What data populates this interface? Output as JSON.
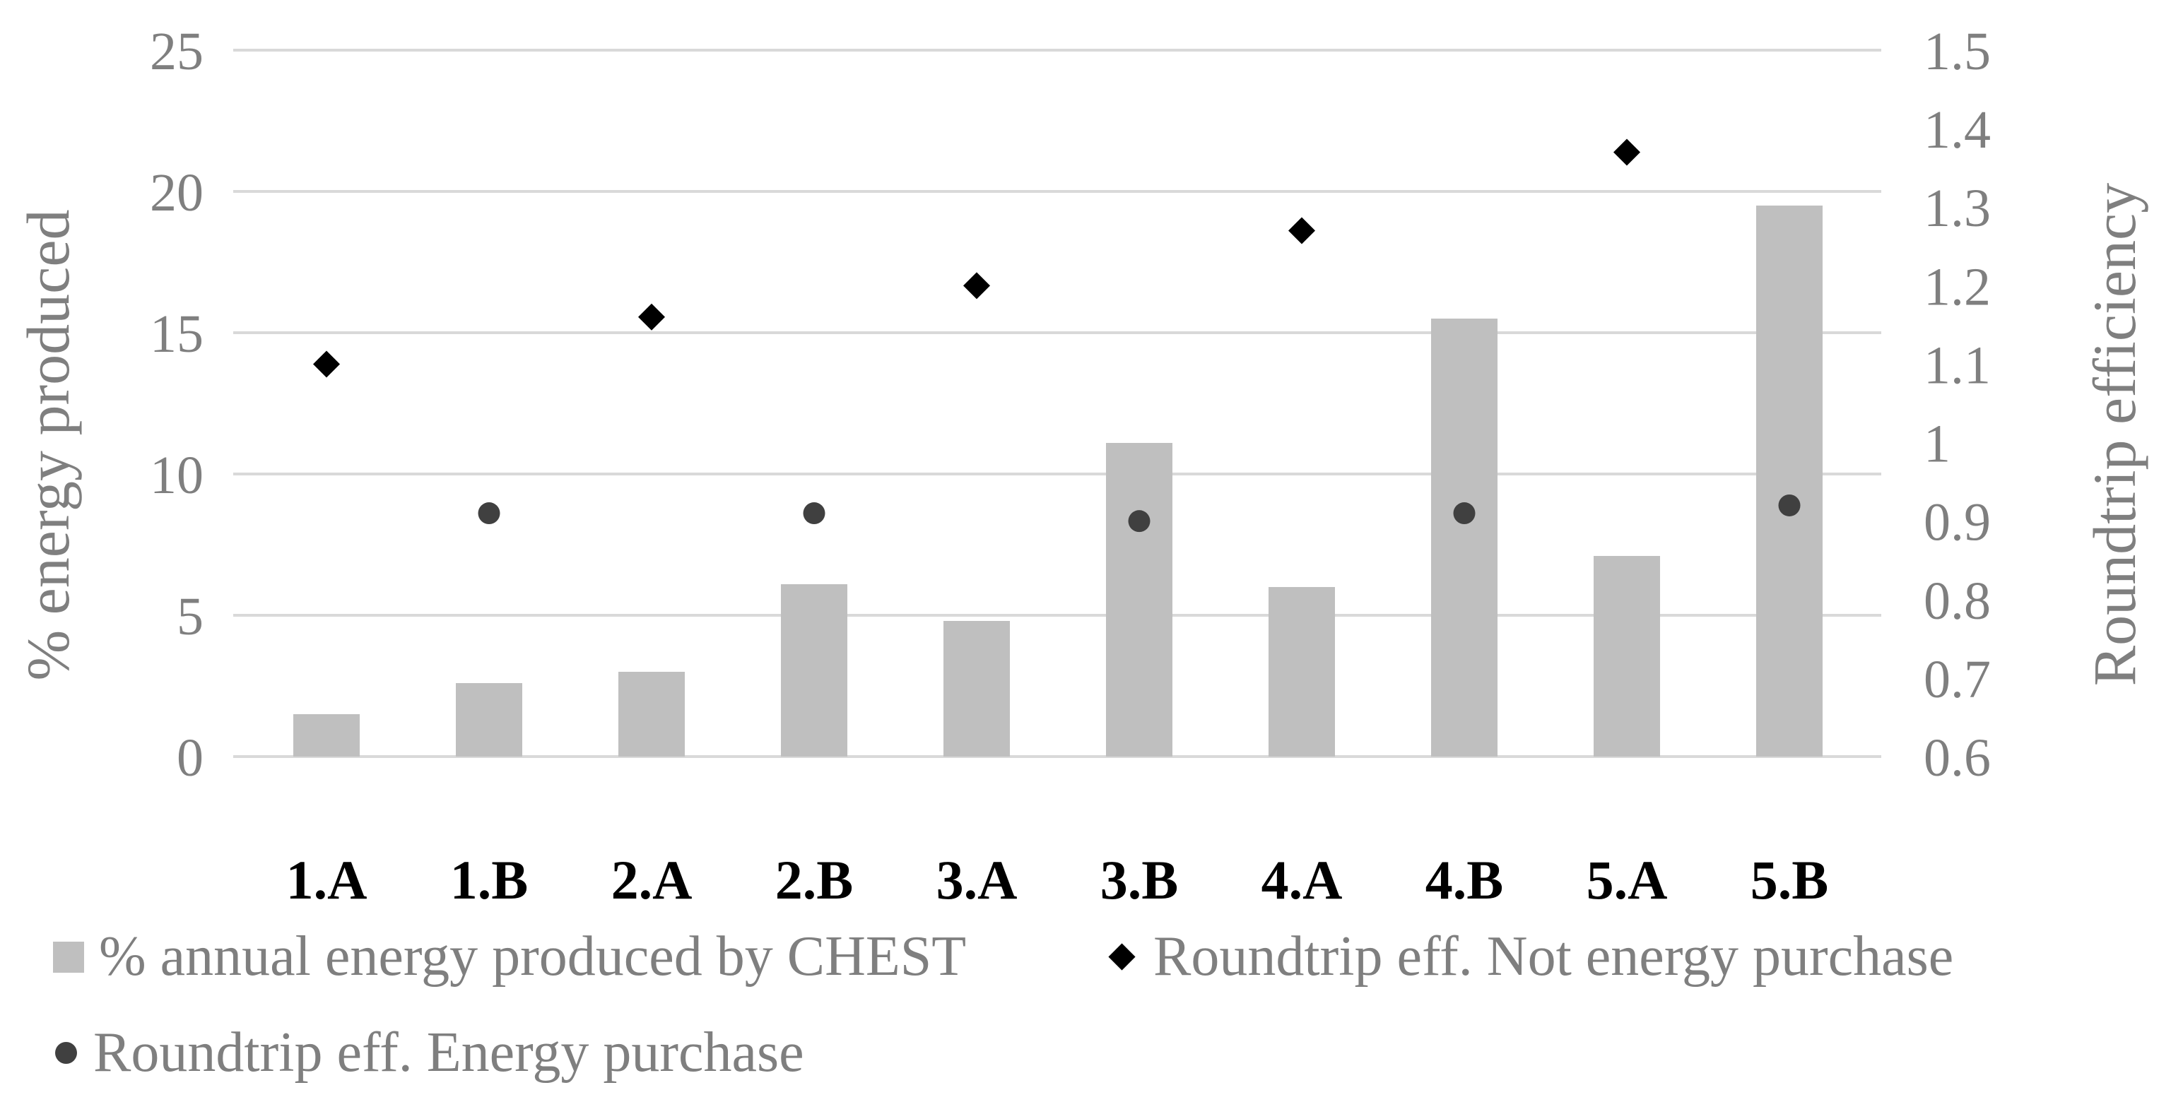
{
  "colors": {
    "background": "#ffffff",
    "gridline": "#d9d9d9",
    "bar": "#bfbfbf",
    "diamond": "#000000",
    "circle": "#404040",
    "axis_text": "#7f7f7f",
    "category_text": "#000000"
  },
  "chart_data": {
    "type": "bar",
    "subtype": "combo-bar-scatter",
    "grid": true,
    "legend_position": "bottom-left",
    "categories": [
      "1.A",
      "1.B",
      "2.A",
      "2.B",
      "3.A",
      "3.B",
      "4.A",
      "4.B",
      "5.A",
      "5.B"
    ],
    "left_axis": {
      "title": "% energy produced",
      "min": 0,
      "max": 25,
      "ticks": [
        0,
        5,
        10,
        15,
        20,
        25
      ]
    },
    "right_axis": {
      "title": "Roundtrip efficiency",
      "min": 0.6,
      "max": 1.5,
      "ticks": [
        0.6,
        0.7,
        0.8,
        0.9,
        1,
        1.1,
        1.2,
        1.3,
        1.4,
        1.5
      ]
    },
    "series": [
      {
        "name": "% annual energy produced by CHEST",
        "type": "bar",
        "axis": "left",
        "marker": "square",
        "color": "#bfbfbf",
        "values": [
          1.5,
          2.6,
          3.0,
          6.1,
          4.8,
          11.1,
          6.0,
          15.5,
          7.1,
          19.5
        ]
      },
      {
        "name": "Roundtrip eff. Not energy purchase",
        "type": "scatter",
        "axis": "right",
        "marker": "diamond",
        "color": "#000000",
        "values": [
          1.1,
          null,
          1.16,
          null,
          1.2,
          null,
          1.27,
          null,
          1.37,
          null
        ]
      },
      {
        "name": "Roundtrip eff. Energy purchase",
        "type": "scatter",
        "axis": "right",
        "marker": "circle",
        "color": "#404040",
        "values": [
          null,
          0.91,
          null,
          0.91,
          null,
          0.9,
          null,
          0.91,
          null,
          0.92
        ]
      }
    ]
  }
}
